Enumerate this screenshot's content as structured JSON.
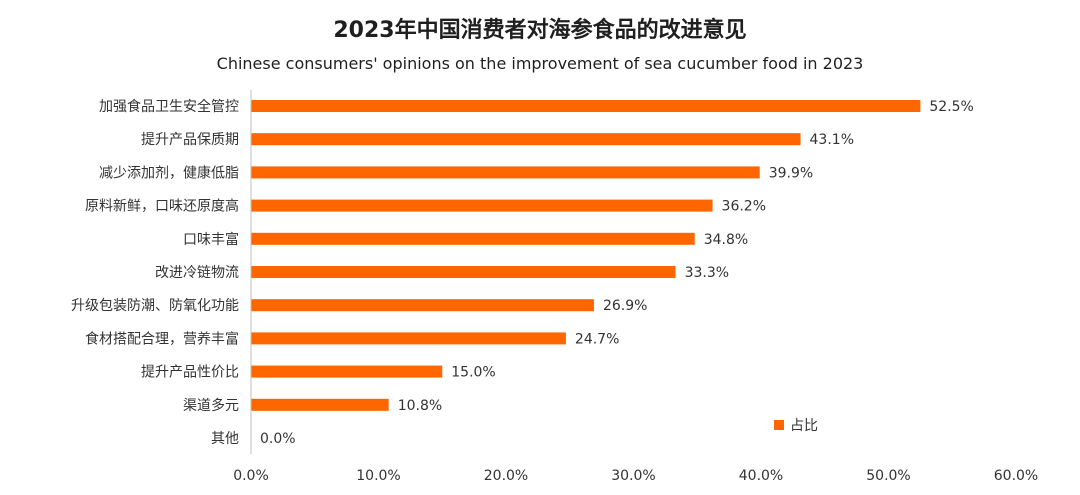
{
  "chart_data": {
    "type": "bar",
    "orientation": "horizontal",
    "title": "2023年中国消费者对海参食品的改进意见",
    "subtitle": "Chinese consumers' opinions on the improvement of sea cucumber food in 2023",
    "xlabel": "",
    "ylabel": "",
    "xlim": [
      0,
      60
    ],
    "x_ticks": [
      0,
      10,
      20,
      30,
      40,
      50,
      60
    ],
    "x_tick_labels": [
      "0.0%",
      "10.0%",
      "20.0%",
      "30.0%",
      "40.0%",
      "50.0%",
      "60.0%"
    ],
    "grid": false,
    "legend_position": "bottom-right",
    "categories": [
      "加强食品卫生安全管控",
      "提升产品保质期",
      "减少添加剂，健康低脂",
      "原料新鲜，口味还原度高",
      "口味丰富",
      "改进冷链物流",
      "升级包装防潮、防氧化功能",
      "食材搭配合理，营养丰富",
      "提升产品性价比",
      "渠道多元",
      "其他"
    ],
    "series": [
      {
        "name": "占比",
        "color": "#FF6600",
        "values": [
          52.5,
          43.1,
          39.9,
          36.2,
          34.8,
          33.3,
          26.9,
          24.7,
          15.0,
          10.8,
          0.0
        ],
        "value_labels": [
          "52.5%",
          "43.1%",
          "39.9%",
          "36.2%",
          "34.8%",
          "33.3%",
          "26.9%",
          "24.7%",
          "15.0%",
          "10.8%",
          "0.0%"
        ]
      }
    ]
  }
}
